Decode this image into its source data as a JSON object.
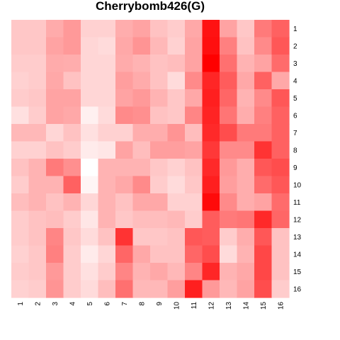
{
  "chart_data": {
    "type": "heatmap",
    "title": "Cherrybomb426(G)",
    "xlabel": "",
    "ylabel": "",
    "x_labels": [
      "1",
      "2",
      "3",
      "4",
      "5",
      "6",
      "7",
      "8",
      "9",
      "10",
      "11",
      "12",
      "13",
      "14",
      "15",
      "16"
    ],
    "y_labels": [
      "1",
      "2",
      "3",
      "4",
      "5",
      "6",
      "7",
      "8",
      "9",
      "10",
      "11",
      "12",
      "13",
      "14",
      "15",
      "16"
    ],
    "value_range": [
      0,
      1
    ],
    "color_low": "#ffffff",
    "color_high": "#ff0000",
    "legend": "none",
    "grid": false,
    "values": [
      [
        0.22,
        0.22,
        0.33,
        0.4,
        0.18,
        0.18,
        0.32,
        0.36,
        0.24,
        0.2,
        0.34,
        0.93,
        0.36,
        0.22,
        0.52,
        0.62
      ],
      [
        0.22,
        0.22,
        0.36,
        0.4,
        0.16,
        0.14,
        0.34,
        0.42,
        0.28,
        0.18,
        0.36,
        0.94,
        0.5,
        0.24,
        0.46,
        0.66
      ],
      [
        0.2,
        0.2,
        0.33,
        0.32,
        0.16,
        0.16,
        0.33,
        0.3,
        0.24,
        0.26,
        0.36,
        1.0,
        0.56,
        0.3,
        0.36,
        0.58
      ],
      [
        0.18,
        0.2,
        0.34,
        0.24,
        0.16,
        0.16,
        0.38,
        0.33,
        0.24,
        0.14,
        0.46,
        0.85,
        0.64,
        0.34,
        0.62,
        0.34
      ],
      [
        0.2,
        0.22,
        0.36,
        0.36,
        0.16,
        0.16,
        0.36,
        0.4,
        0.3,
        0.22,
        0.34,
        0.88,
        0.6,
        0.3,
        0.46,
        0.66
      ],
      [
        0.12,
        0.2,
        0.36,
        0.34,
        0.06,
        0.14,
        0.46,
        0.44,
        0.24,
        0.22,
        0.48,
        0.86,
        0.54,
        0.32,
        0.5,
        0.62
      ],
      [
        0.28,
        0.28,
        0.16,
        0.24,
        0.12,
        0.18,
        0.18,
        0.32,
        0.32,
        0.42,
        0.26,
        0.84,
        0.7,
        0.52,
        0.52,
        0.62
      ],
      [
        0.18,
        0.18,
        0.24,
        0.2,
        0.08,
        0.1,
        0.36,
        0.26,
        0.38,
        0.38,
        0.36,
        0.78,
        0.46,
        0.46,
        0.8,
        0.62
      ],
      [
        0.24,
        0.3,
        0.52,
        0.44,
        0.0,
        0.3,
        0.3,
        0.3,
        0.22,
        0.18,
        0.24,
        0.84,
        0.4,
        0.32,
        0.66,
        0.7
      ],
      [
        0.2,
        0.3,
        0.3,
        0.62,
        0.04,
        0.3,
        0.34,
        0.46,
        0.2,
        0.14,
        0.22,
        0.88,
        0.38,
        0.32,
        0.58,
        0.66
      ],
      [
        0.26,
        0.3,
        0.24,
        0.3,
        0.16,
        0.3,
        0.24,
        0.34,
        0.34,
        0.18,
        0.18,
        0.96,
        0.46,
        0.32,
        0.36,
        0.58
      ],
      [
        0.2,
        0.24,
        0.26,
        0.2,
        0.1,
        0.3,
        0.22,
        0.26,
        0.26,
        0.28,
        0.2,
        0.64,
        0.52,
        0.54,
        0.84,
        0.6
      ],
      [
        0.2,
        0.24,
        0.48,
        0.22,
        0.14,
        0.24,
        0.8,
        0.22,
        0.22,
        0.24,
        0.66,
        0.64,
        0.2,
        0.32,
        0.66,
        0.24
      ],
      [
        0.18,
        0.22,
        0.5,
        0.2,
        0.08,
        0.16,
        0.6,
        0.34,
        0.24,
        0.24,
        0.6,
        0.7,
        0.14,
        0.3,
        0.72,
        0.24
      ],
      [
        0.2,
        0.22,
        0.4,
        0.2,
        0.12,
        0.2,
        0.48,
        0.3,
        0.34,
        0.28,
        0.48,
        0.85,
        0.3,
        0.34,
        0.72,
        0.24
      ],
      [
        0.18,
        0.2,
        0.42,
        0.2,
        0.14,
        0.26,
        0.56,
        0.28,
        0.28,
        0.38,
        0.88,
        0.4,
        0.28,
        0.36,
        0.7,
        0.2
      ]
    ]
  }
}
